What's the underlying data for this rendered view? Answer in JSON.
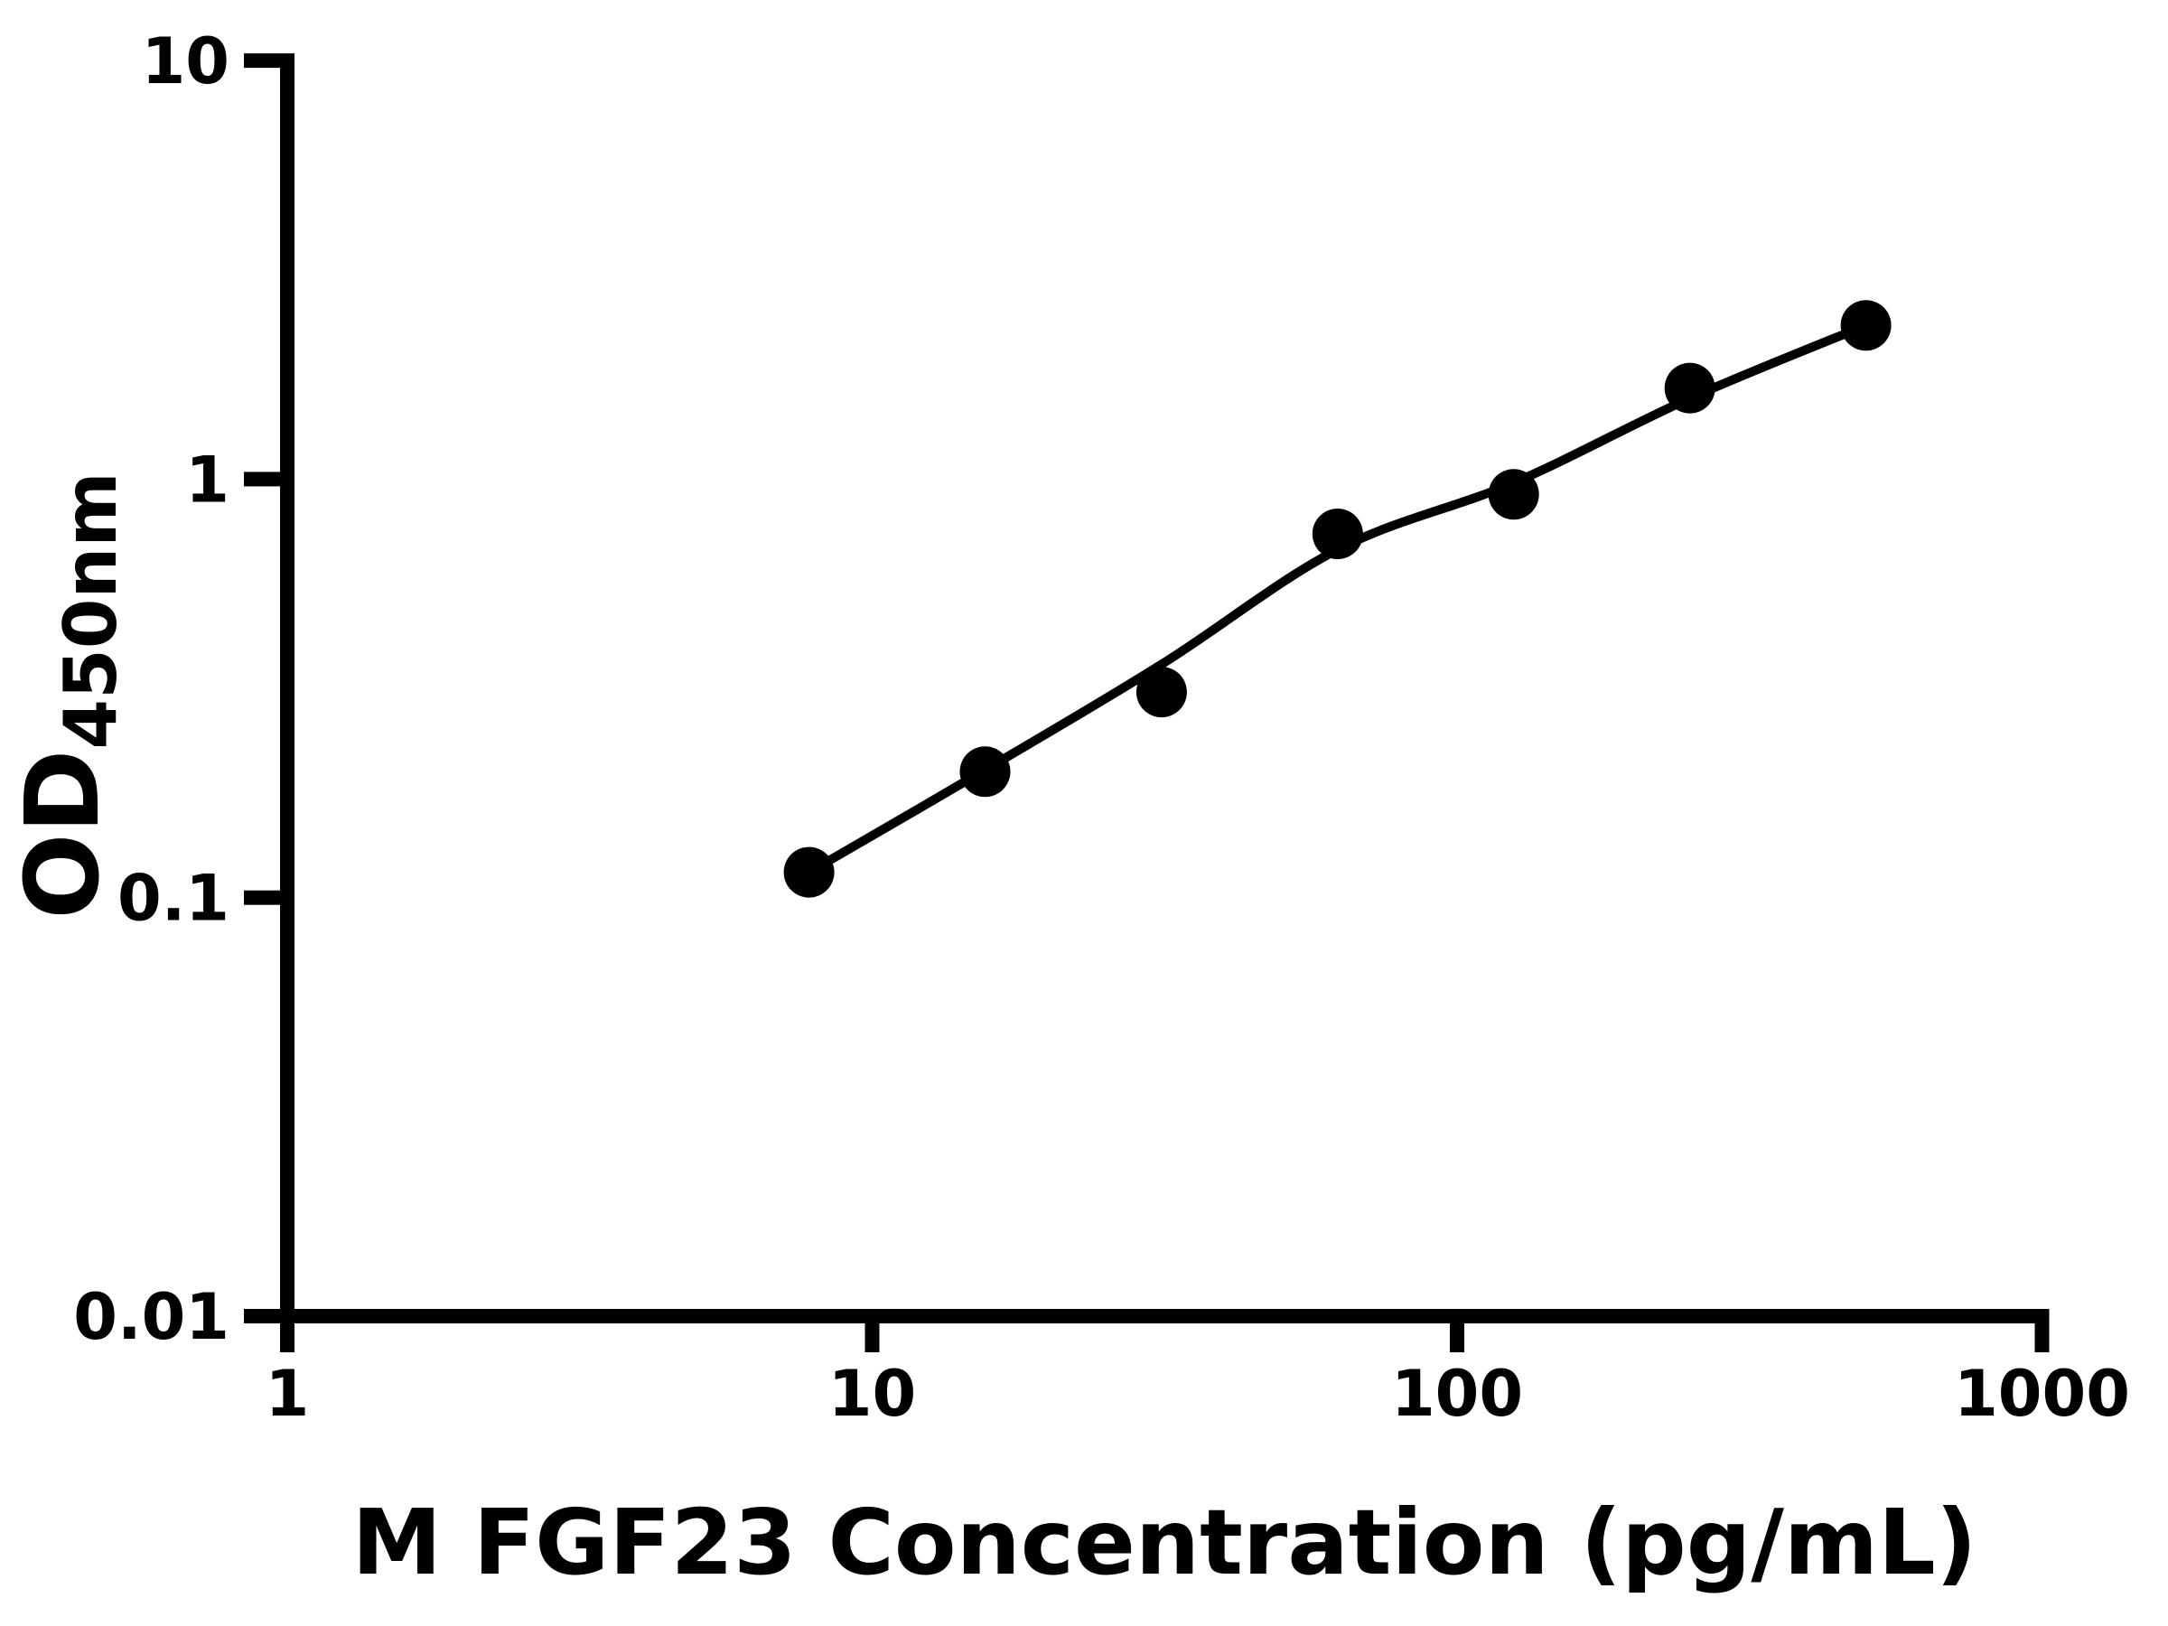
{
  "chart_data": {
    "type": "scatter",
    "title": "",
    "xlabel": "M FGF23 Concentration (pg/mL)",
    "ylabel_main": "OD",
    "ylabel_sub": "450nm",
    "x_scale": "log",
    "y_scale": "log",
    "xlim": [
      1,
      1000
    ],
    "ylim": [
      0.01,
      10
    ],
    "x_ticks": [
      1,
      10,
      100,
      1000
    ],
    "x_tick_labels": [
      "1",
      "10",
      "100",
      "1000"
    ],
    "y_ticks": [
      10,
      1,
      0.1,
      0.01
    ],
    "y_tick_labels": [
      "10",
      "1",
      "0.1",
      "0.01"
    ],
    "grid": false,
    "legend": null,
    "background_color": "#ffffff",
    "marker_color": "#000000",
    "line_color": "#000000",
    "points": [
      [
        7.8,
        0.115
      ],
      [
        15.6,
        0.2
      ],
      [
        31.25,
        0.31
      ],
      [
        62.5,
        0.74
      ],
      [
        125,
        0.92
      ],
      [
        250,
        1.65
      ],
      [
        500,
        2.33
      ]
    ],
    "fit_curve": [
      [
        7.8,
        0.115
      ],
      [
        15.6,
        0.202
      ],
      [
        31.25,
        0.361
      ],
      [
        62.5,
        0.679
      ],
      [
        125,
        0.98
      ],
      [
        250,
        1.56
      ],
      [
        500,
        2.33
      ]
    ]
  }
}
